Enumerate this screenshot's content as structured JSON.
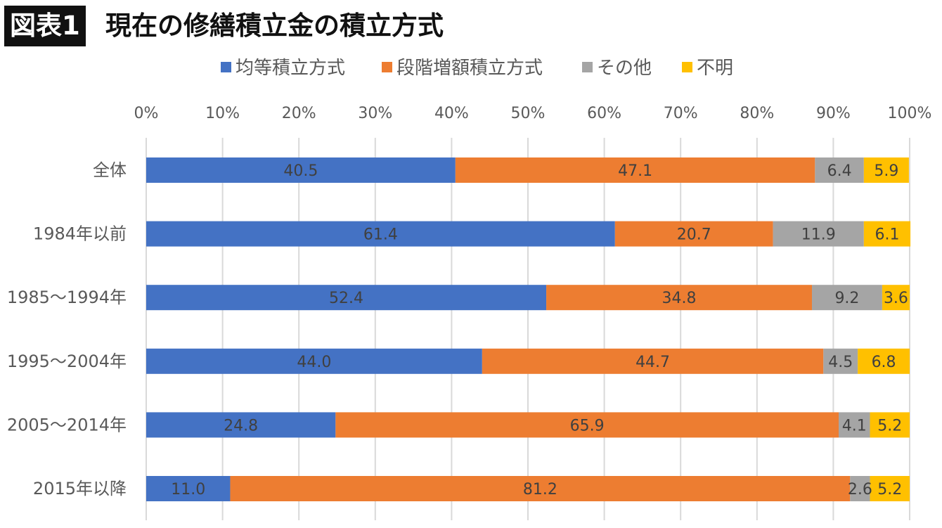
{
  "header": {
    "badge": "図表1",
    "title": "現在の修繕積立金の積立方式"
  },
  "chart_data": {
    "type": "bar",
    "orientation": "horizontal",
    "stacked": true,
    "title": "現在の修繕積立金の積立方式",
    "xlabel": "",
    "ylabel": "",
    "xlim": [
      0,
      100
    ],
    "x_ticks": [
      "0%",
      "10%",
      "20%",
      "30%",
      "40%",
      "50%",
      "60%",
      "70%",
      "80%",
      "90%",
      "100%"
    ],
    "grid": true,
    "legend_position": "top",
    "categories": [
      "全体",
      "1984年以前",
      "1985〜1994年",
      "1995〜2004年",
      "2005〜2014年",
      "2015年以降"
    ],
    "series": [
      {
        "name": "均等積立方式",
        "color": "#4472c4",
        "values": [
          40.5,
          61.4,
          52.4,
          44.0,
          24.8,
          11.0
        ],
        "labels": [
          "40.5",
          "61.4",
          "52.4",
          "44.0",
          "24.8",
          "11.0"
        ]
      },
      {
        "name": "段階増額積立方式",
        "color": "#ed7d31",
        "values": [
          47.1,
          20.7,
          34.8,
          44.7,
          65.9,
          81.2
        ],
        "labels": [
          "47.1",
          "20.7",
          "34.8",
          "44.7",
          "65.9",
          "81.2"
        ]
      },
      {
        "name": "その他",
        "color": "#a5a5a5",
        "values": [
          6.4,
          11.9,
          9.2,
          4.5,
          4.1,
          2.6
        ],
        "labels": [
          "6.4",
          "11.9",
          "9.2",
          "4.5",
          "4.1",
          "2.6"
        ]
      },
      {
        "name": "不明",
        "color": "#ffc000",
        "values": [
          5.9,
          6.1,
          3.6,
          6.8,
          5.2,
          5.2
        ],
        "labels": [
          "5.9",
          "6.1",
          "3.6",
          "6.8",
          "5.2",
          "5.2"
        ]
      }
    ]
  }
}
